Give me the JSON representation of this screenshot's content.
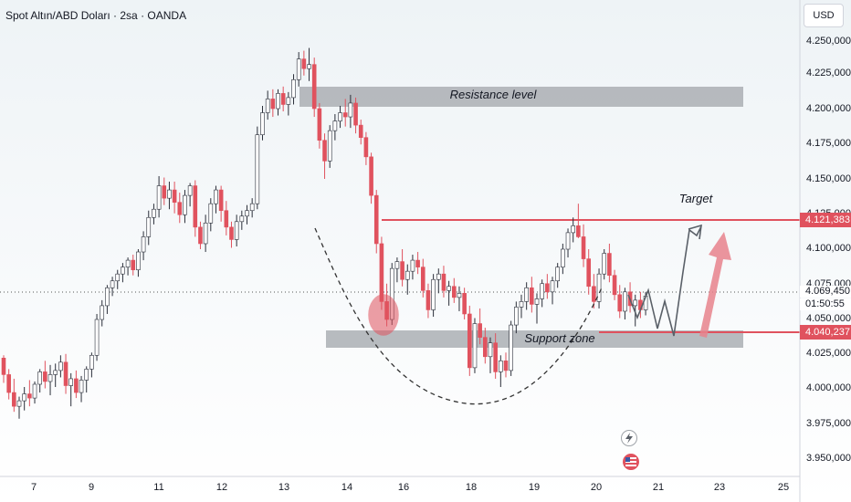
{
  "header": {
    "title": "Spot Altın/ABD Doları · 2sa · OANDA",
    "currency": "USD"
  },
  "badges": {
    "target_price": "4.121,383",
    "last_price": "4.069,450",
    "countdown": "01:50:55",
    "support_price": "4.040,237"
  },
  "annotations": {
    "resistance": "Resistance level",
    "support": "Support zone",
    "target": "Target"
  },
  "colors": {
    "up": "#ffffff",
    "down": "#e0525e",
    "zone": "#a8acb1",
    "target_line": "#e0525e",
    "arrow": "#e8838c"
  },
  "events": {
    "flash_icon": "lightning-icon",
    "flag_icon": "us-flag-icon"
  },
  "chart_data": {
    "type": "candlestick",
    "title": "Spot Altın/ABD Doları · 2sa · OANDA",
    "y_ticks": [
      "4.250,000",
      "4.225,000",
      "4.200,000",
      "4.175,000",
      "4.150,000",
      "4.125,000",
      "4.100,000",
      "4.075,000",
      "4.050,000",
      "4.025,000",
      "4.000,000",
      "3.975,000",
      "3.950,000"
    ],
    "x_ticks": [
      "7",
      "9",
      "11",
      "12",
      "13",
      "14",
      "16",
      "18",
      "19",
      "20",
      "21",
      "23",
      "25"
    ],
    "ylim": [
      3942,
      4257
    ],
    "levels": {
      "target": 4121.383,
      "last": 4069.45,
      "support_line": 4040.237
    },
    "resistance_zone": [
      4205,
      4218
    ],
    "support_zone": [
      4030,
      4040
    ],
    "candles": [
      [
        4020,
        4022,
        4002,
        4008
      ],
      [
        4008,
        4012,
        3990,
        3995
      ],
      [
        3995,
        4005,
        3981,
        3985
      ],
      [
        3985,
        3992,
        3976,
        3989
      ],
      [
        3989,
        3999,
        3982,
        3994
      ],
      [
        3994,
        4004,
        3985,
        3991
      ],
      [
        3991,
        4003,
        3987,
        4001
      ],
      [
        4001,
        4012,
        3995,
        4010
      ],
      [
        4010,
        4018,
        3998,
        4003
      ],
      [
        4003,
        4015,
        3993,
        4008
      ],
      [
        4008,
        4016,
        3999,
        4011
      ],
      [
        4011,
        4022,
        4006,
        4017
      ],
      [
        4017,
        4023,
        3994,
        4000
      ],
      [
        4000,
        4009,
        3985,
        4005
      ],
      [
        4005,
        4011,
        3991,
        3995
      ],
      [
        3995,
        4007,
        3988,
        4004
      ],
      [
        4004,
        4014,
        3995,
        4012
      ],
      [
        4012,
        4024,
        4006,
        4022
      ],
      [
        4022,
        4052,
        4018,
        4048
      ],
      [
        4048,
        4062,
        4043,
        4058
      ],
      [
        4058,
        4073,
        4052,
        4071
      ],
      [
        4071,
        4079,
        4065,
        4076
      ],
      [
        4076,
        4084,
        4070,
        4081
      ],
      [
        4081,
        4089,
        4075,
        4086
      ],
      [
        4086,
        4093,
        4080,
        4091
      ],
      [
        4091,
        4095,
        4080,
        4084
      ],
      [
        4084,
        4099,
        4079,
        4097
      ],
      [
        4097,
        4112,
        4091,
        4108
      ],
      [
        4108,
        4127,
        4102,
        4122
      ],
      [
        4122,
        4132,
        4117,
        4128
      ],
      [
        4128,
        4152,
        4122,
        4145
      ],
      [
        4145,
        4151,
        4131,
        4136
      ],
      [
        4136,
        4148,
        4128,
        4142
      ],
      [
        4142,
        4148,
        4125,
        4133
      ],
      [
        4133,
        4140,
        4118,
        4124
      ],
      [
        4124,
        4142,
        4118,
        4138
      ],
      [
        4138,
        4147,
        4130,
        4145
      ],
      [
        4145,
        4149,
        4108,
        4115
      ],
      [
        4115,
        4119,
        4099,
        4103
      ],
      [
        4103,
        4124,
        4097,
        4118
      ],
      [
        4118,
        4136,
        4112,
        4132
      ],
      [
        4132,
        4145,
        4125,
        4142
      ],
      [
        4142,
        4145,
        4119,
        4127
      ],
      [
        4127,
        4134,
        4109,
        4115
      ],
      [
        4115,
        4119,
        4100,
        4106
      ],
      [
        4106,
        4124,
        4101,
        4119
      ],
      [
        4119,
        4127,
        4113,
        4123
      ],
      [
        4123,
        4131,
        4117,
        4127
      ],
      [
        4127,
        4136,
        4122,
        4132
      ],
      [
        4132,
        4188,
        4128,
        4182
      ],
      [
        4182,
        4203,
        4178,
        4198
      ],
      [
        4198,
        4214,
        4193,
        4208
      ],
      [
        4208,
        4215,
        4195,
        4201
      ],
      [
        4201,
        4215,
        4196,
        4212
      ],
      [
        4212,
        4217,
        4199,
        4204
      ],
      [
        4204,
        4213,
        4196,
        4209
      ],
      [
        4209,
        4226,
        4204,
        4222
      ],
      [
        4222,
        4242,
        4217,
        4237
      ],
      [
        4237,
        4243,
        4225,
        4230
      ],
      [
        4230,
        4245,
        4221,
        4233
      ],
      [
        4233,
        4238,
        4195,
        4201
      ],
      [
        4201,
        4205,
        4172,
        4178
      ],
      [
        4178,
        4183,
        4150,
        4163
      ],
      [
        4163,
        4189,
        4158,
        4185
      ],
      [
        4185,
        4197,
        4178,
        4192
      ],
      [
        4192,
        4203,
        4187,
        4198
      ],
      [
        4198,
        4208,
        4188,
        4195
      ],
      [
        4195,
        4211,
        4187,
        4205
      ],
      [
        4205,
        4209,
        4183,
        4189
      ],
      [
        4189,
        4193,
        4175,
        4180
      ],
      [
        4180,
        4184,
        4160,
        4166
      ],
      [
        4166,
        4169,
        4132,
        4138
      ],
      [
        4138,
        4142,
        4096,
        4103
      ],
      [
        4103,
        4108,
        4055,
        4061
      ],
      [
        4061,
        4074,
        4043,
        4048
      ],
      [
        4048,
        4089,
        4044,
        4085
      ],
      [
        4085,
        4093,
        4075,
        4090
      ],
      [
        4090,
        4099,
        4072,
        4077
      ],
      [
        4077,
        4088,
        4066,
        4083
      ],
      [
        4083,
        4095,
        4077,
        4091
      ],
      [
        4091,
        4097,
        4081,
        4086
      ],
      [
        4086,
        4092,
        4064,
        4069
      ],
      [
        4069,
        4074,
        4049,
        4055
      ],
      [
        4055,
        4081,
        4050,
        4077
      ],
      [
        4077,
        4085,
        4067,
        4081
      ],
      [
        4081,
        4087,
        4064,
        4069
      ],
      [
        4069,
        4076,
        4058,
        4072
      ],
      [
        4072,
        4078,
        4060,
        4064
      ],
      [
        4064,
        4072,
        4054,
        4067
      ],
      [
        4067,
        4071,
        4048,
        4052
      ],
      [
        4052,
        4058,
        4007,
        4013
      ],
      [
        4013,
        4049,
        4009,
        4045
      ],
      [
        4045,
        4056,
        4030,
        4035
      ],
      [
        4035,
        4042,
        4016,
        4021
      ],
      [
        4021,
        4035,
        4009,
        4031
      ],
      [
        4031,
        4038,
        4005,
        4010
      ],
      [
        4010,
        4022,
        3999,
        4018
      ],
      [
        4018,
        4024,
        4006,
        4011
      ],
      [
        4011,
        4047,
        4007,
        4044
      ],
      [
        4044,
        4061,
        4038,
        4057
      ],
      [
        4057,
        4066,
        4049,
        4061
      ],
      [
        4061,
        4075,
        4055,
        4071
      ],
      [
        4071,
        4079,
        4053,
        4059
      ],
      [
        4059,
        4067,
        4045,
        4063
      ],
      [
        4063,
        4077,
        4057,
        4074
      ],
      [
        4074,
        4081,
        4063,
        4068
      ],
      [
        4068,
        4079,
        4059,
        4076
      ],
      [
        4076,
        4089,
        4071,
        4086
      ],
      [
        4086,
        4103,
        4081,
        4099
      ],
      [
        4099,
        4114,
        4093,
        4111
      ],
      [
        4111,
        4122,
        4104,
        4116
      ],
      [
        4116,
        4132,
        4107,
        4108
      ],
      [
        4108,
        4117,
        4086,
        4092
      ],
      [
        4092,
        4099,
        4066,
        4072
      ],
      [
        4072,
        4081,
        4056,
        4061
      ],
      [
        4061,
        4085,
        4056,
        4081
      ],
      [
        4081,
        4099,
        4077,
        4096
      ],
      [
        4096,
        4103,
        4075,
        4080
      ],
      [
        4080,
        4084,
        4062,
        4066
      ],
      [
        4066,
        4073,
        4049,
        4054
      ],
      [
        4054,
        4071,
        4048,
        4068
      ],
      [
        4068,
        4075,
        4053,
        4058
      ],
      [
        4058,
        4066,
        4043,
        4062
      ],
      [
        4062,
        4068,
        4049,
        4055
      ],
      [
        4055,
        4068,
        4051,
        4065
      ]
    ]
  }
}
